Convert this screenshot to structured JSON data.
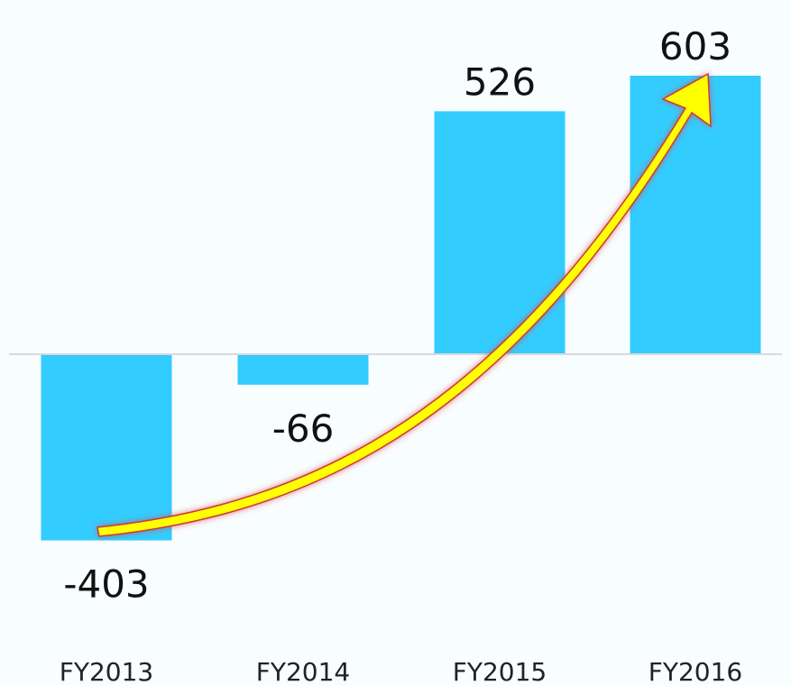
{
  "chart_data": {
    "type": "bar",
    "categories": [
      "FY2013",
      "FY2014",
      "FY2015",
      "FY2016"
    ],
    "values": [
      -403,
      -66,
      526,
      603
    ],
    "data_labels": [
      "-403",
      "-66",
      "526",
      "603"
    ],
    "ylim": [
      -403,
      603
    ],
    "grid": false,
    "legend": "none",
    "annotation": "upward trend arrow",
    "colors": {
      "bar": "#33ccff",
      "baseline": "#d9d9d9",
      "arrow_fill": "#ffff00",
      "arrow_glow": "#d94a4a"
    }
  }
}
